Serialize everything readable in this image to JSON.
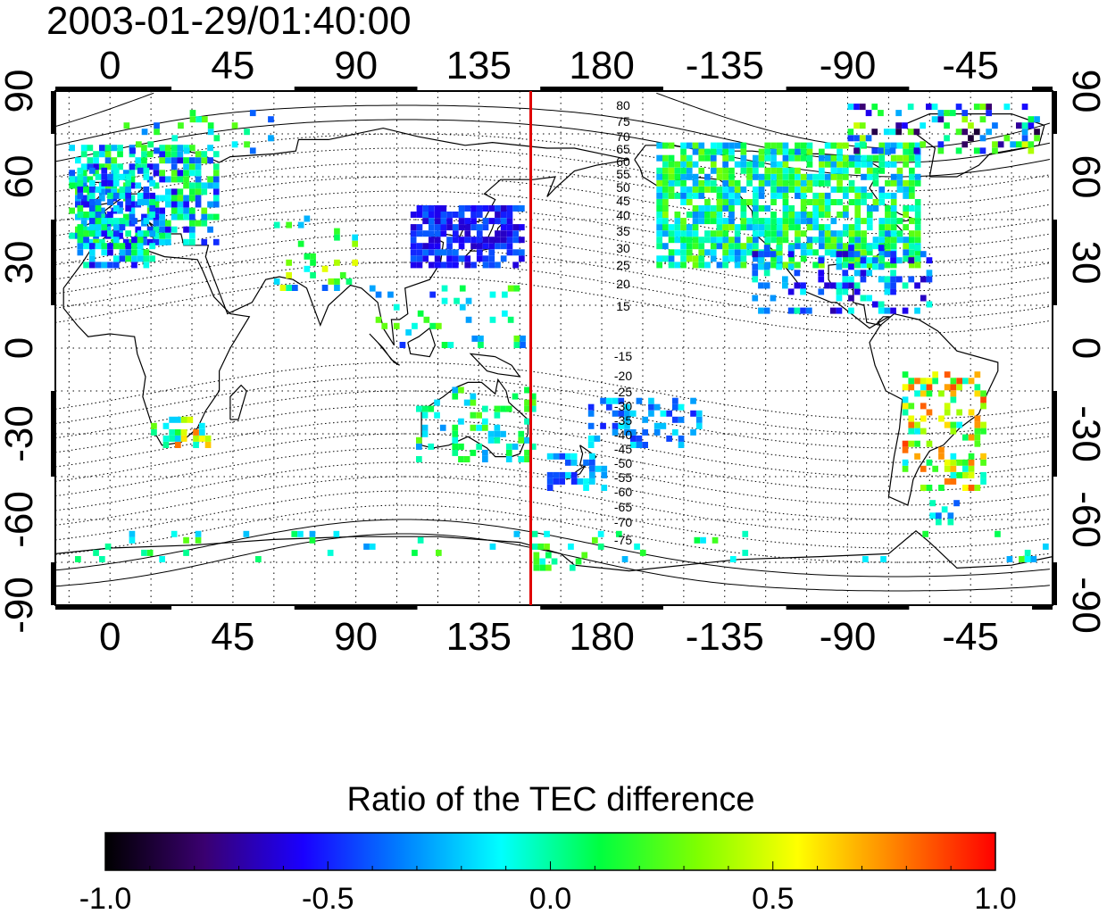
{
  "header": {
    "timestamp": "2003-01-29/01:40:00"
  },
  "map": {
    "projection": "equirectangular",
    "lon_range_display": [
      -20,
      345
    ],
    "lat_range": [
      -90,
      90
    ],
    "top_lon_ticks": [
      "0",
      "45",
      "90",
      "135",
      "180",
      "-135",
      "-90",
      "-45"
    ],
    "bottom_lon_ticks": [
      "0",
      "45",
      "90",
      "135",
      "180",
      "-135",
      "-90",
      "-45"
    ],
    "left_lat_ticks": [
      "90",
      "60",
      "30",
      "0",
      "-30",
      "-60",
      "-90"
    ],
    "right_lat_ticks": [
      "90",
      "60",
      "30",
      "0",
      "-30",
      "-60",
      "-90"
    ],
    "grid": "dotted every 15 deg lon / 15 deg lat",
    "terminator_lon": 154,
    "terminator_color": "#e00000",
    "mag_lat_labels_north": [
      "80",
      "75",
      "70",
      "65",
      "60",
      "55",
      "50",
      "45",
      "40",
      "35",
      "30",
      "25",
      "20",
      "15"
    ],
    "mag_lat_labels_south": [
      "-15",
      "-20",
      "-25",
      "-30",
      "-35",
      "-40",
      "-45",
      "-50",
      "-55",
      "-60",
      "-65",
      "-70",
      "-75"
    ]
  },
  "colorbar": {
    "title": "Ratio of the TEC difference",
    "tick_labels": [
      "-1.0",
      "-0.5",
      "0.0",
      "0.5",
      "1.0"
    ],
    "range": [
      -1.0,
      1.0
    ],
    "colors": [
      "#000000",
      "#3a0070",
      "#1a00ff",
      "#0080ff",
      "#00ffff",
      "#00ff40",
      "#80ff00",
      "#ffff00",
      "#ff8000",
      "#ff0000"
    ]
  }
}
